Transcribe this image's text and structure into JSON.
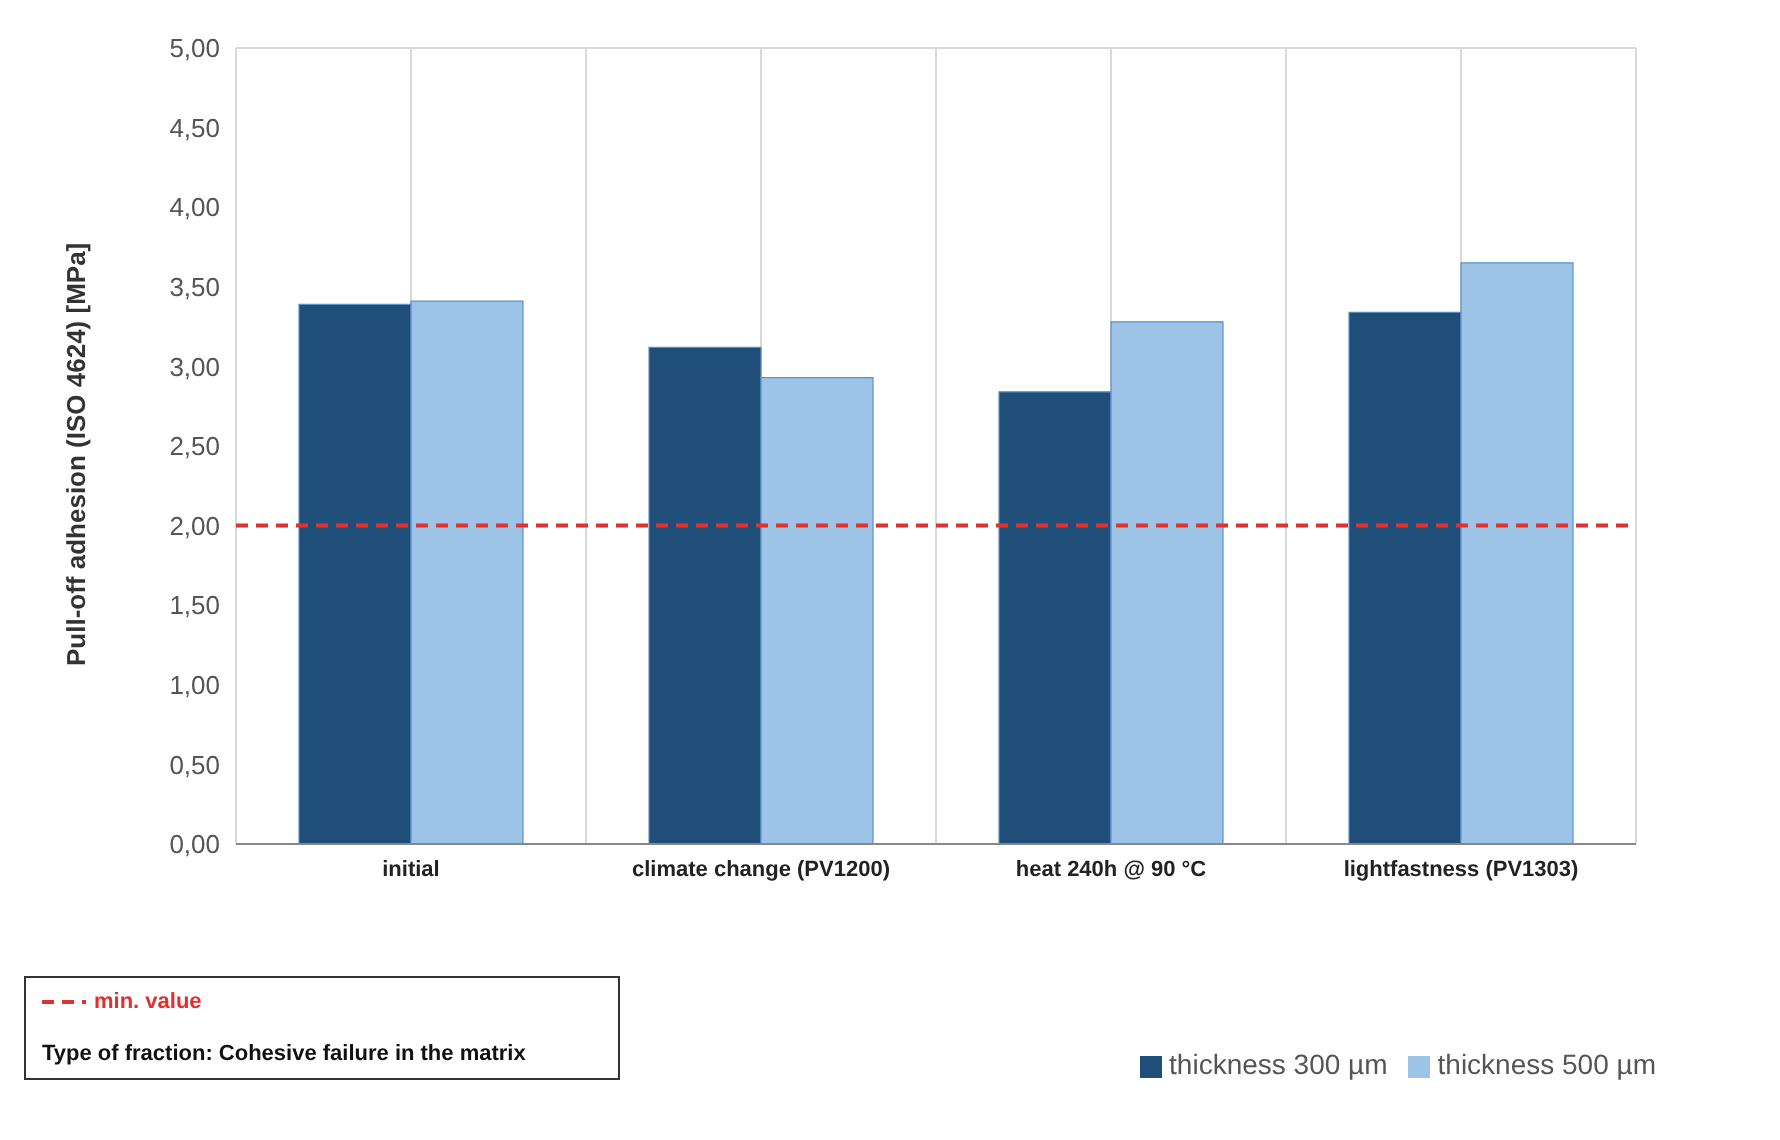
{
  "chart_data": {
    "type": "bar",
    "ylabel": "Pull-off adhesion (ISO 4624) [MPa]",
    "categories": [
      "initial",
      "climate change (PV1200)",
      "heat 240h @ 90 °C",
      "lightfastness  (PV1303)"
    ],
    "series": [
      {
        "name": "thickness 300 µm",
        "color": "#1f4e79",
        "values": [
          3.39,
          3.12,
          2.84,
          3.34
        ]
      },
      {
        "name": "thickness 500 µm",
        "color": "#9dc3e6",
        "values": [
          3.41,
          2.93,
          3.28,
          3.65
        ]
      }
    ],
    "ylim": [
      0,
      5
    ],
    "yticks": [
      {
        "value": 0,
        "label": "0,00"
      },
      {
        "value": 0.5,
        "label": "0,50"
      },
      {
        "value": 1,
        "label": "1,00"
      },
      {
        "value": 1.5,
        "label": "1,50"
      },
      {
        "value": 2,
        "label": "2,00"
      },
      {
        "value": 2.5,
        "label": "2,50"
      },
      {
        "value": 3,
        "label": "3,00"
      },
      {
        "value": 3.5,
        "label": "3,50"
      },
      {
        "value": 4,
        "label": "4,00"
      },
      {
        "value": 4.5,
        "label": "4,50"
      },
      {
        "value": 5,
        "label": "5,00"
      }
    ],
    "ref_lines": [
      {
        "axis": "y",
        "value": 2,
        "label": "min. value",
        "color": "#e03030",
        "line_style": "dashed"
      }
    ],
    "annotations": [
      "Type of  fraction: Cohesive failure in the matrix"
    ],
    "grid": true,
    "legend": "bottom"
  }
}
